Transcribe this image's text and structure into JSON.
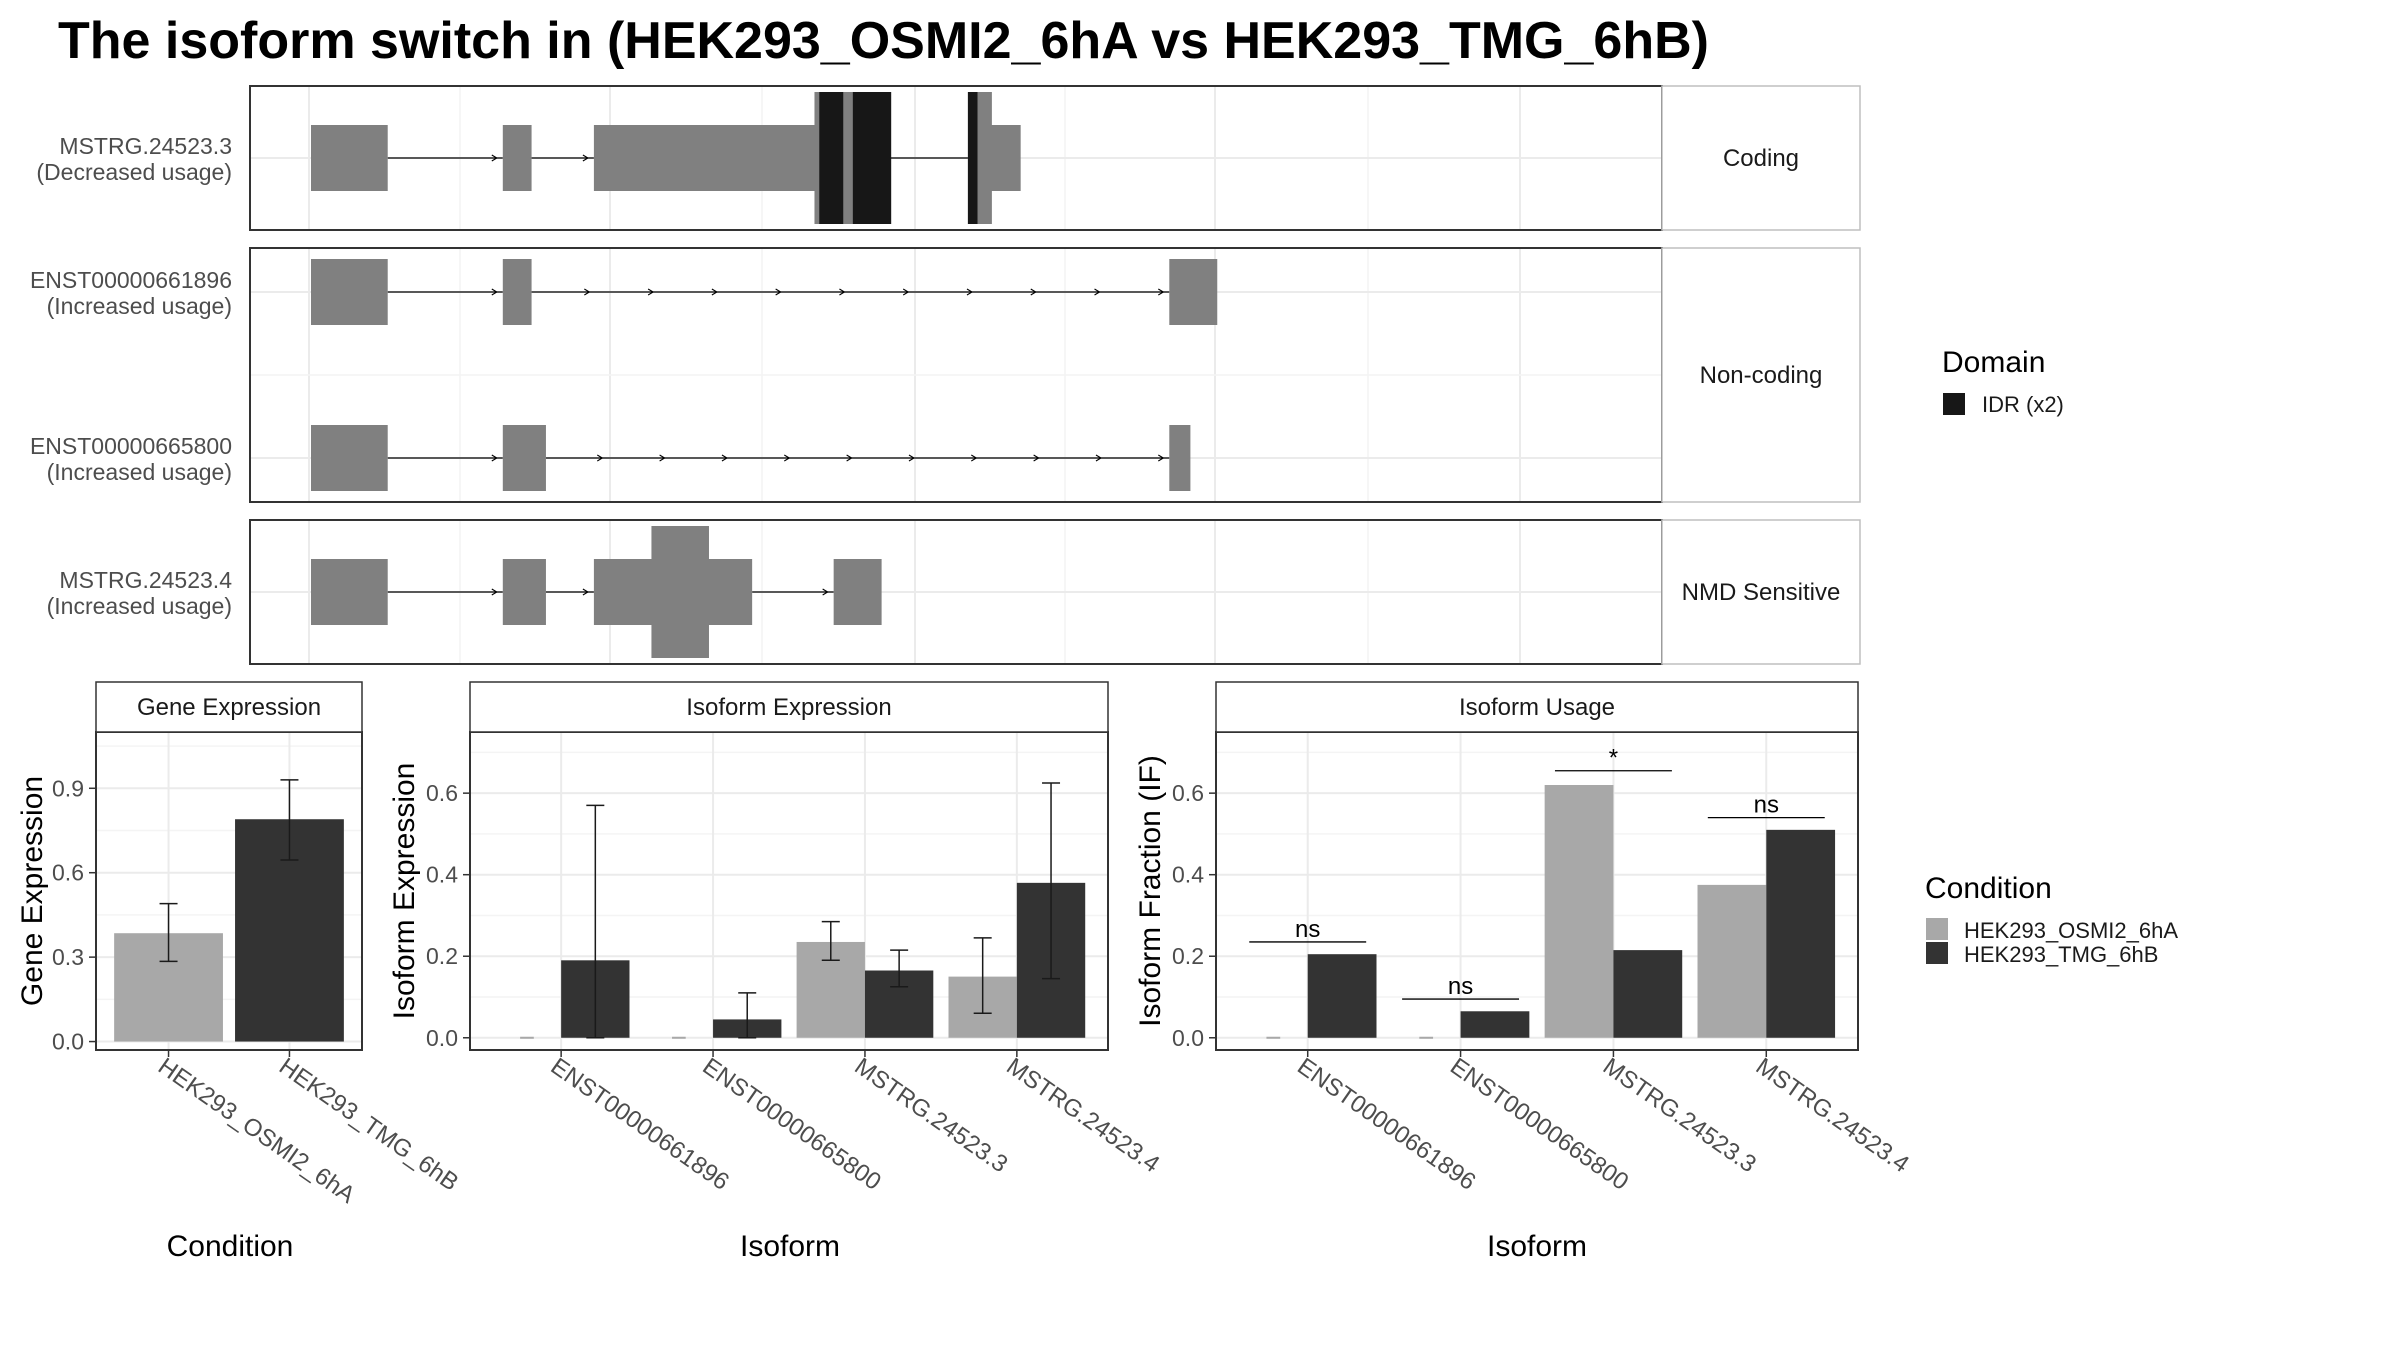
{
  "title": "The isoform switch in  (HEK293_OSMI2_6hA vs HEK293_TMG_6hB)",
  "colors": {
    "exon": "#808080",
    "domain": "#171717",
    "condition_a": "#a8a8a8",
    "condition_b": "#333333",
    "panel_border": "#333333",
    "strip_border": "#bfbfbf",
    "grid": "#ebebeb"
  },
  "structure": {
    "coord_range": [
      0,
      100
    ],
    "facets": [
      {
        "label": "Coding",
        "isoforms": [
          "MSTRG.24523.3"
        ]
      },
      {
        "label": "Non-coding",
        "isoforms": [
          "ENST00000661896",
          "ENST00000665800"
        ]
      },
      {
        "label": "NMD Sensitive",
        "isoforms": [
          "MSTRG.24523.4"
        ]
      }
    ],
    "isoforms": [
      {
        "id": "MSTRG.24523.3",
        "usage": "(Decreased usage)",
        "exons": [
          [
            0,
            8
          ],
          [
            20,
            23
          ],
          [
            29.5,
            58
          ],
          [
            70,
            74
          ]
        ],
        "cds": [
          [
            52.5,
            58
          ],
          [
            68.5,
            71
          ]
        ],
        "domains": [
          [
            53,
            55.5
          ],
          [
            56.5,
            60.5
          ],
          [
            68.5,
            69.5
          ]
        ]
      },
      {
        "id": "ENST00000661896",
        "usage": "(Increased usage)",
        "exons": [
          [
            0,
            8
          ],
          [
            20,
            23
          ],
          [
            89.5,
            94.5
          ]
        ],
        "cds": [],
        "domains": []
      },
      {
        "id": "ENST00000665800",
        "usage": "(Increased usage)",
        "exons": [
          [
            0,
            8
          ],
          [
            20,
            24.5
          ],
          [
            89.5,
            91.7
          ]
        ],
        "cds": [],
        "domains": []
      },
      {
        "id": "MSTRG.24523.4",
        "usage": "(Increased usage)",
        "exons": [
          [
            0,
            8
          ],
          [
            20,
            24.5
          ],
          [
            29.5,
            46
          ],
          [
            54.5,
            59.5
          ]
        ],
        "cds": [
          [
            35.5,
            41.5
          ]
        ],
        "domains": []
      }
    ]
  },
  "legend_domain": {
    "title": "Domain",
    "items": [
      {
        "label": "IDR (x2)"
      }
    ]
  },
  "legend_condition": {
    "title": "Condition",
    "items": [
      {
        "label": "HEK293_OSMI2_6hA"
      },
      {
        "label": "HEK293_TMG_6hB"
      }
    ]
  },
  "chart_data": [
    {
      "type": "bar",
      "title": "Gene Expression",
      "xlabel": "Condition",
      "ylabel": "Gene Expression",
      "ylim": [
        -0.03,
        1.1
      ],
      "yticks": [
        0.0,
        0.3,
        0.6,
        0.9
      ],
      "ytick_labels": [
        "0.0",
        "0.3",
        "0.6",
        "0.9"
      ],
      "categories": [
        "HEK293_OSMI2_6hA",
        "HEK293_TMG_6hB"
      ],
      "values": [
        0.385,
        0.79
      ],
      "err_low": [
        0.285,
        0.645
      ],
      "err_high": [
        0.49,
        0.93
      ],
      "bar_colors": [
        "#a8a8a8",
        "#333333"
      ]
    },
    {
      "type": "bar",
      "title": "Isoform Expression",
      "xlabel": "Isoform",
      "ylabel": "Isoform Expression",
      "ylim": [
        -0.03,
        0.75
      ],
      "yticks": [
        0.0,
        0.2,
        0.4,
        0.6
      ],
      "ytick_labels": [
        "0.0",
        "0.2",
        "0.4",
        "0.6"
      ],
      "categories": [
        "ENST00000661896",
        "ENST00000665800",
        "MSTRG.24523.3",
        "MSTRG.24523.4"
      ],
      "series": [
        {
          "name": "HEK293_OSMI2_6hA",
          "values": [
            0.0,
            0.0,
            0.235,
            0.15
          ],
          "err_low": [
            0.0,
            0.0,
            0.19,
            0.06
          ],
          "err_high": [
            0.0,
            0.0,
            0.285,
            0.245
          ]
        },
        {
          "name": "HEK293_TMG_6hB",
          "values": [
            0.19,
            0.045,
            0.165,
            0.38
          ],
          "err_low": [
            0.0,
            0.0,
            0.125,
            0.145
          ],
          "err_high": [
            0.57,
            0.11,
            0.215,
            0.625
          ]
        }
      ]
    },
    {
      "type": "bar",
      "title": "Isoform Usage",
      "xlabel": "Isoform",
      "ylabel": "Isoform Fraction (IF)",
      "ylim": [
        -0.03,
        0.75
      ],
      "yticks": [
        0.0,
        0.2,
        0.4,
        0.6
      ],
      "ytick_labels": [
        "0.0",
        "0.2",
        "0.4",
        "0.6"
      ],
      "categories": [
        "ENST00000661896",
        "ENST00000665800",
        "MSTRG.24523.3",
        "MSTRG.24523.4"
      ],
      "series": [
        {
          "name": "HEK293_OSMI2_6hA",
          "values": [
            0.0,
            0.0,
            0.62,
            0.375
          ]
        },
        {
          "name": "HEK293_TMG_6hB",
          "values": [
            0.205,
            0.065,
            0.215,
            0.51
          ]
        }
      ],
      "significance": [
        {
          "category": "ENST00000661896",
          "label": "ns",
          "y": 0.235
        },
        {
          "category": "ENST00000665800",
          "label": "ns",
          "y": 0.095
        },
        {
          "category": "MSTRG.24523.3",
          "label": "*",
          "y": 0.655
        },
        {
          "category": "MSTRG.24523.4",
          "label": "ns",
          "y": 0.54
        }
      ]
    }
  ]
}
